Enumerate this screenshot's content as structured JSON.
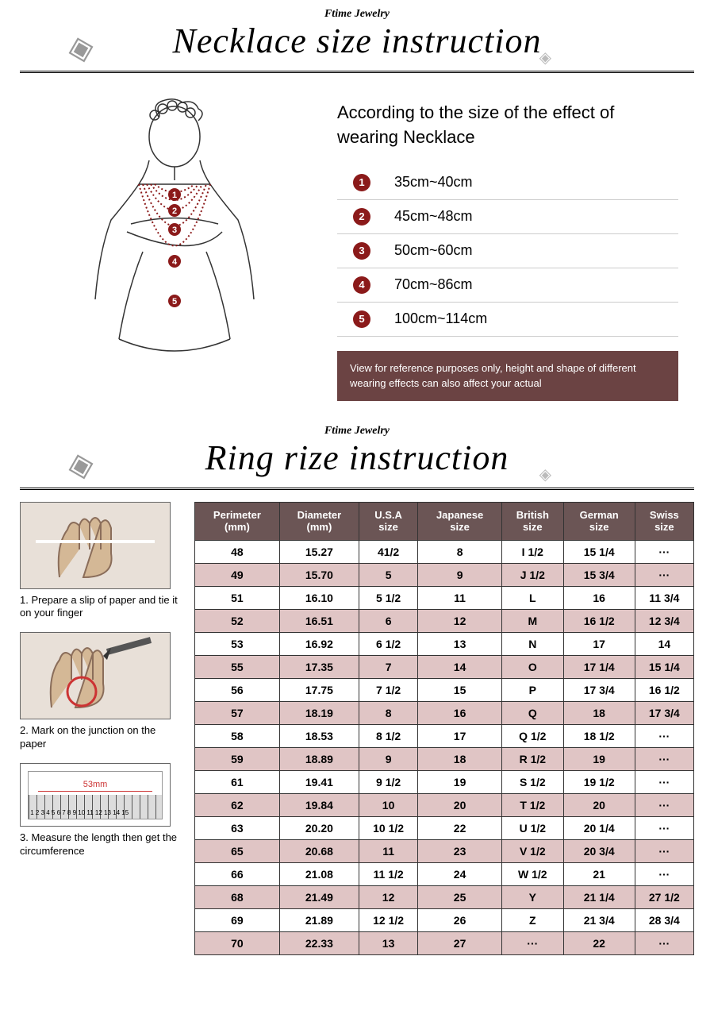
{
  "brand": "Ftime Jewelry",
  "necklace": {
    "title": "Necklace size instruction",
    "heading": "According to the size of the effect of wearing Necklace",
    "sizes": [
      {
        "n": "1",
        "range": "35cm~40cm"
      },
      {
        "n": "2",
        "range": "45cm~48cm"
      },
      {
        "n": "3",
        "range": "50cm~60cm"
      },
      {
        "n": "4",
        "range": "70cm~86cm"
      },
      {
        "n": "5",
        "range": "100cm~114cm"
      }
    ],
    "disclaimer": "View for reference purposes only, height and shape of different wearing effects can also affect your actual",
    "badge_color": "#8b1a1a",
    "disclaimer_bg": "#6b4343"
  },
  "ring": {
    "title": "Ring rize instruction",
    "steps": [
      "1. Prepare a slip of paper and tie it on your finger",
      "2. Mark on the junction on the paper",
      "3. Measure the length then get the circumference"
    ],
    "ruler_label": "53mm",
    "table": {
      "header_bg": "#6b5555",
      "row_alt_bg": "#e0c5c5",
      "columns": [
        "Perimeter\n(mm)",
        "Diameter\n(mm)",
        "U.S.A\nsize",
        "Japanese\nsize",
        "British\nsize",
        "German\nsize",
        "Swiss\nsize"
      ],
      "rows": [
        [
          "48",
          "15.27",
          "41/2",
          "8",
          "I 1/2",
          "15 1/4",
          "···"
        ],
        [
          "49",
          "15.70",
          "5",
          "9",
          "J 1/2",
          "15 3/4",
          "···"
        ],
        [
          "51",
          "16.10",
          "5 1/2",
          "11",
          "L",
          "16",
          "11 3/4"
        ],
        [
          "52",
          "16.51",
          "6",
          "12",
          "M",
          "16 1/2",
          "12 3/4"
        ],
        [
          "53",
          "16.92",
          "6 1/2",
          "13",
          "N",
          "17",
          "14"
        ],
        [
          "55",
          "17.35",
          "7",
          "14",
          "O",
          "17 1/4",
          "15 1/4"
        ],
        [
          "56",
          "17.75",
          "7 1/2",
          "15",
          "P",
          "17 3/4",
          "16 1/2"
        ],
        [
          "57",
          "18.19",
          "8",
          "16",
          "Q",
          "18",
          "17 3/4"
        ],
        [
          "58",
          "18.53",
          "8 1/2",
          "17",
          "Q 1/2",
          "18 1/2",
          "···"
        ],
        [
          "59",
          "18.89",
          "9",
          "18",
          "R 1/2",
          "19",
          "···"
        ],
        [
          "61",
          "19.41",
          "9 1/2",
          "19",
          "S 1/2",
          "19 1/2",
          "···"
        ],
        [
          "62",
          "19.84",
          "10",
          "20",
          "T 1/2",
          "20",
          "···"
        ],
        [
          "63",
          "20.20",
          "10 1/2",
          "22",
          "U 1/2",
          "20 1/4",
          "···"
        ],
        [
          "65",
          "20.68",
          "11",
          "23",
          "V 1/2",
          "20 3/4",
          "···"
        ],
        [
          "66",
          "21.08",
          "11 1/2",
          "24",
          "W 1/2",
          "21",
          "···"
        ],
        [
          "68",
          "21.49",
          "12",
          "25",
          "Y",
          "21 1/4",
          "27 1/2"
        ],
        [
          "69",
          "21.89",
          "12 1/2",
          "26",
          "Z",
          "21 3/4",
          "28 3/4"
        ],
        [
          "70",
          "22.33",
          "13",
          "27",
          "···",
          "22",
          "···"
        ]
      ]
    }
  }
}
